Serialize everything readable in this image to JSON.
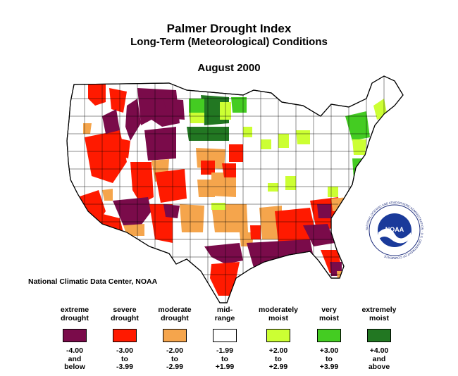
{
  "title": "Palmer Drought Index",
  "subtitle": "Long-Term (Meteorological) Conditions",
  "date": "August 2000",
  "credit": "National Climatic Data Center, NOAA",
  "logo_text": "NOAA",
  "logo_ring_text": "NATIONAL OCEANIC AND ATMOSPHERIC ADMINISTRATION · U.S. DEPARTMENT OF COMMERCE",
  "legend": [
    {
      "label": "extreme\ndrought",
      "range": "-4.00\nand\nbelow",
      "color": "#7a0b4a"
    },
    {
      "label": "severe\ndrought",
      "range": "-3.00\nto\n-3.99",
      "color": "#ff1a00"
    },
    {
      "label": "moderate\ndrought",
      "range": "-2.00\nto\n-2.99",
      "color": "#f5a54c"
    },
    {
      "label": "mid-\nrange",
      "range": "-1.99\nto\n+1.99",
      "color": "#ffffff"
    },
    {
      "label": "moderately\nmoist",
      "range": "+2.00\nto\n+2.99",
      "color": "#ccff33"
    },
    {
      "label": "very\nmoist",
      "range": "+3.00\nto\n+3.99",
      "color": "#44cc22"
    },
    {
      "label": "extremely\nmoist",
      "range": "+4.00\nand\nabove",
      "color": "#227722"
    }
  ]
}
